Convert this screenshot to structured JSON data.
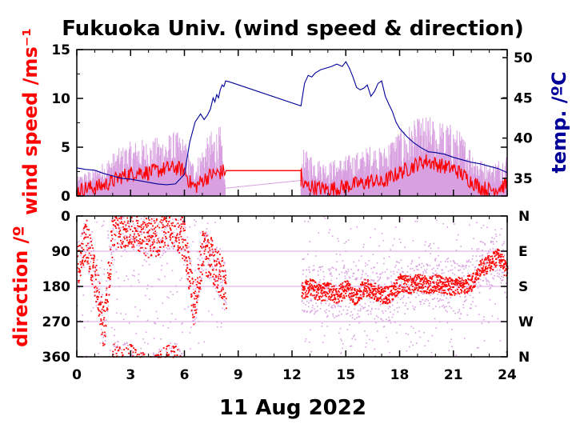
{
  "chart_data": [
    {
      "type": "line",
      "title": "Fukuoka Univ. (wind speed & direction)",
      "xlabel": "11 Aug 2022",
      "ylabel": "wind speed /ms⁻¹",
      "y2label": "temp. /ºC",
      "x_ticks": [
        "0",
        "3",
        "6",
        "9",
        "12",
        "15",
        "18",
        "21",
        "24"
      ],
      "xlim": [
        0,
        24
      ],
      "ylim": [
        0,
        15
      ],
      "y_ticks": [
        "0",
        "5",
        "10",
        "15"
      ],
      "y2lim": [
        32.8,
        51
      ],
      "y2_ticks": [
        "35",
        "40",
        "45",
        "50"
      ],
      "colors": {
        "wind_mean": "#ff0000",
        "wind_gust": "#d8a0e0",
        "temperature": "#000099"
      },
      "series": [
        {
          "key": "temperature",
          "x": [
            0,
            0.5,
            1,
            1.5,
            2,
            2.5,
            3,
            3.5,
            4,
            4.5,
            5,
            5.5,
            6,
            6.3,
            6.6,
            6.9,
            7.1,
            7.3,
            7.45,
            7.6,
            7.7,
            7.8,
            7.9,
            8.0,
            8.1,
            8.2,
            8.3,
            8.5,
            12.5,
            12.7,
            12.9,
            13.1,
            13.3,
            13.6,
            13.9,
            14.2,
            14.5,
            14.8,
            15.0,
            15.2,
            15.4,
            15.6,
            15.8,
            16.0,
            16.2,
            16.4,
            16.6,
            16.8,
            17.0,
            17.2,
            17.4,
            17.6,
            17.8,
            18.0,
            18.4,
            18.8,
            19.2,
            19.6,
            20.0,
            20.5,
            21.0,
            21.5,
            22.0,
            22.5,
            23.0,
            23.5,
            24.0
          ],
          "values": [
            36.3,
            36.1,
            36.0,
            35.6,
            35.3,
            35.0,
            34.9,
            34.7,
            34.5,
            34.3,
            34.2,
            34.3,
            35.5,
            39.5,
            42.0,
            43.0,
            42.3,
            42.9,
            43.6,
            45.0,
            44.5,
            45.4,
            45.0,
            46.0,
            46.6,
            46.4,
            47.1,
            47.0,
            44.0,
            46.8,
            47.8,
            47.6,
            48.1,
            48.5,
            48.7,
            48.9,
            49.2,
            48.9,
            49.5,
            48.7,
            47.6,
            46.3,
            46.0,
            46.2,
            46.6,
            45.2,
            45.8,
            46.8,
            47.1,
            45.2,
            44.2,
            43.3,
            42.0,
            41.2,
            40.2,
            39.4,
            38.8,
            38.3,
            38.2,
            38.0,
            37.6,
            37.3,
            37.0,
            36.8,
            36.5,
            36.2,
            35.7
          ]
        },
        {
          "key": "wind_mean",
          "x": [
            0,
            0.5,
            1,
            1.5,
            2,
            2.5,
            3,
            3.5,
            4,
            4.5,
            5,
            5.5,
            6,
            6.3,
            6.6,
            7.0,
            7.5,
            8.0,
            8.3,
            12.5,
            12.6,
            13,
            13.5,
            14,
            14.5,
            15,
            15.5,
            16,
            16.5,
            17,
            17.5,
            18,
            18.5,
            19,
            19.5,
            20,
            20.5,
            21,
            21.5,
            22,
            22.5,
            23,
            23.5,
            24
          ],
          "values": [
            0.5,
            0.8,
            0.9,
            1.1,
            1.5,
            2.0,
            2.3,
            2.5,
            2.4,
            2.6,
            2.8,
            2.9,
            2.6,
            1.4,
            0.9,
            1.6,
            2.2,
            2.4,
            2.6,
            2.6,
            1.1,
            1.0,
            0.8,
            0.7,
            0.8,
            1.0,
            1.2,
            1.3,
            1.6,
            1.3,
            1.9,
            2.4,
            2.8,
            3.3,
            3.6,
            3.3,
            3.0,
            2.8,
            2.2,
            1.5,
            0.9,
            0.6,
            0.8,
            1.2
          ]
        },
        {
          "key": "wind_gust",
          "x": [
            0,
            0.5,
            1,
            1.5,
            2,
            2.5,
            3,
            3.5,
            4,
            4.5,
            5,
            5.5,
            6,
            6.3,
            6.6,
            7.0,
            7.5,
            8.0,
            8.3,
            12.5,
            12.6,
            13,
            13.5,
            14,
            14.5,
            15,
            15.5,
            16,
            16.5,
            17,
            17.5,
            18,
            18.5,
            19,
            19.5,
            20,
            20.5,
            21,
            21.5,
            22,
            22.5,
            23,
            23.5,
            24
          ],
          "values": [
            1.2,
            1.6,
            1.8,
            2.2,
            2.8,
            3.2,
            3.5,
            3.7,
            3.6,
            3.8,
            4.0,
            4.2,
            3.8,
            2.5,
            2.2,
            3.2,
            4.2,
            4.5,
            0.8,
            1.6,
            3.0,
            2.8,
            2.4,
            2.2,
            2.4,
            2.6,
            2.8,
            3.0,
            3.4,
            3.0,
            3.8,
            4.3,
            4.6,
            5.0,
            5.2,
            5.0,
            4.8,
            4.6,
            4.0,
            3.2,
            2.4,
            2.0,
            2.4,
            2.8
          ]
        }
      ]
    },
    {
      "type": "scatter",
      "xlabel": "11 Aug 2022",
      "ylabel": "direction /º",
      "x_ticks": [
        "0",
        "3",
        "6",
        "9",
        "12",
        "15",
        "18",
        "21",
        "24"
      ],
      "xlim": [
        0,
        24
      ],
      "ylim": [
        0,
        360
      ],
      "y_ticks": [
        "0",
        "90",
        "180",
        "270",
        "360"
      ],
      "y2_ticks": [
        "N",
        "E",
        "S",
        "W",
        "N"
      ],
      "gap": [
        8.3,
        12.5
      ],
      "grid": true,
      "colors": {
        "direction_mean": "#ff0000",
        "direction_gust": "#d8a0e0"
      },
      "series": [
        {
          "key": "direction_mean",
          "x": [
            0,
            0.5,
            1,
            1.5,
            2,
            2.5,
            3,
            3.5,
            4,
            4.5,
            5,
            5.5,
            6,
            6.5,
            7,
            7.5,
            8,
            8.3,
            12.5,
            13,
            13.5,
            14,
            14.5,
            15,
            15.5,
            16,
            16.5,
            17,
            17.5,
            18,
            18.5,
            19,
            19.5,
            20,
            20.5,
            21,
            21.5,
            22,
            22.5,
            23,
            23.5,
            24
          ],
          "values": [
            130,
            60,
            160,
            290,
            20,
            30,
            20,
            40,
            50,
            45,
            20,
            25,
            70,
            230,
            90,
            110,
            150,
            190,
            190,
            180,
            195,
            190,
            200,
            185,
            205,
            180,
            190,
            200,
            200,
            170,
            175,
            170,
            175,
            170,
            175,
            180,
            175,
            170,
            130,
            120,
            100,
            150
          ]
        }
      ]
    }
  ]
}
